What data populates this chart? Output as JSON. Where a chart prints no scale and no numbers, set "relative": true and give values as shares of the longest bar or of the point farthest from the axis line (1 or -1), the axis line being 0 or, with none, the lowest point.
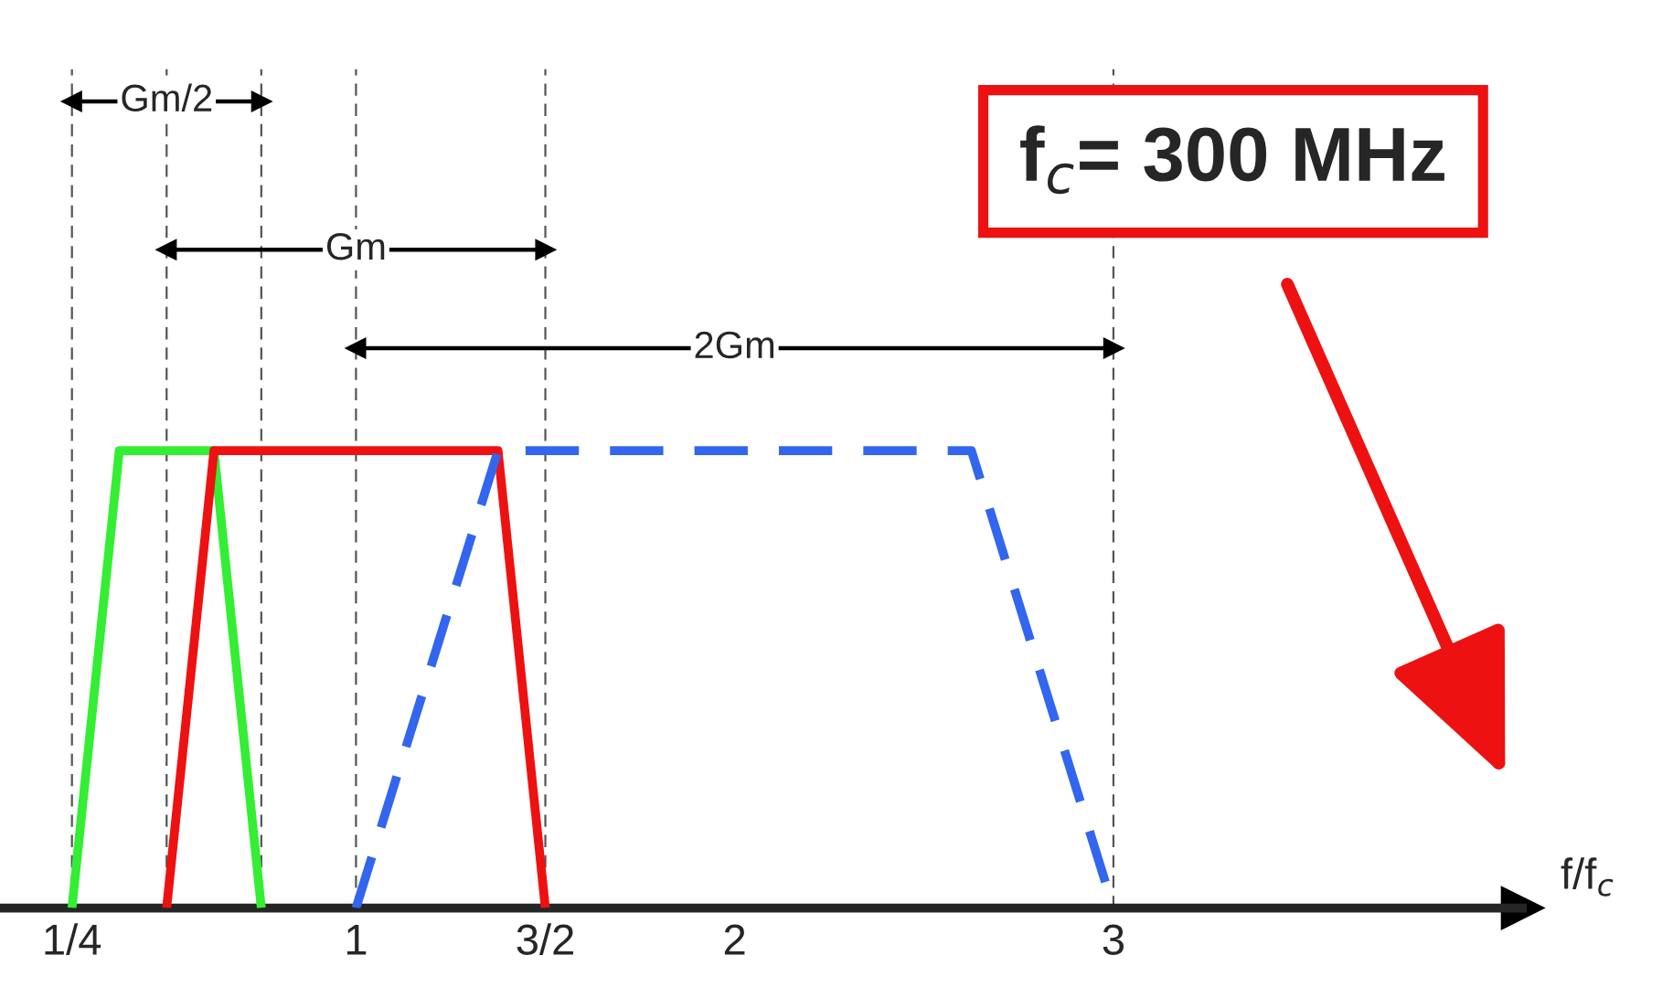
{
  "chart_data": {
    "type": "line",
    "relative": true,
    "xlabel": "f/f$_{c}$",
    "xlim": [
      0.06,
      4.08
    ],
    "xticks": [
      {
        "value": 0.25,
        "label": "1/4"
      },
      {
        "value": 0.5,
        "label": null
      },
      {
        "value": 1,
        "label": "1"
      },
      {
        "value": 1.5,
        "label": "3/2"
      },
      {
        "value": 2,
        "label": "2"
      },
      {
        "value": 3,
        "label": "3"
      }
    ],
    "series": [
      {
        "color": "#33ee33",
        "x": [
          0.25,
          0.375,
          0.625,
          0.75
        ],
        "values": [
          0,
          0.567,
          0.567,
          0
        ]
      },
      {
        "color": "#ee1111",
        "x": [
          0.5,
          0.625,
          1.375,
          1.5
        ],
        "values": [
          0,
          0.567,
          0.567,
          0
        ]
      },
      {
        "color": "#3366ee",
        "line_style": "dashed",
        "x": [
          1,
          1.375,
          2.625,
          3
        ],
        "values": [
          0,
          0.567,
          0.567,
          0
        ]
      },
      {
        "color": "#000000",
        "marker": "triangle",
        "x": [
          0.25,
          0.75
        ],
        "values": [
          1,
          1
        ]
      },
      {
        "color": "#000000",
        "marker": "triangle",
        "x": [
          0.5,
          1.5
        ],
        "values": [
          0.816,
          0.816
        ]
      },
      {
        "color": "#000000",
        "marker": "triangle",
        "x": [
          1,
          3
        ],
        "values": [
          0.694,
          0.694
        ]
      }
    ],
    "ref_lines": [
      {
        "axis": "x",
        "value": 0.25,
        "color": "#555555",
        "line_style": "dashed"
      },
      {
        "axis": "x",
        "value": 0.5,
        "color": "#555555",
        "line_style": "dashed"
      },
      {
        "axis": "x",
        "value": 0.75,
        "color": "#555555",
        "line_style": "dashed"
      },
      {
        "axis": "x",
        "value": 1,
        "color": "#555555",
        "line_style": "dashed"
      },
      {
        "axis": "x",
        "value": 1.5,
        "color": "#555555",
        "line_style": "dashed"
      },
      {
        "axis": "x",
        "value": 3,
        "color": "#555555",
        "line_style": "dashed"
      }
    ],
    "annotations": [
      {
        "text": "Gm/2",
        "x": 0.5,
        "y": 1
      },
      {
        "text": "Gm",
        "x": 1,
        "y": 0.816
      },
      {
        "text": "2Gm",
        "x": 2,
        "y": 0.694
      },
      "f$_{c}$= 300 MHz"
    ],
    "legend": false,
    "grid": false
  }
}
